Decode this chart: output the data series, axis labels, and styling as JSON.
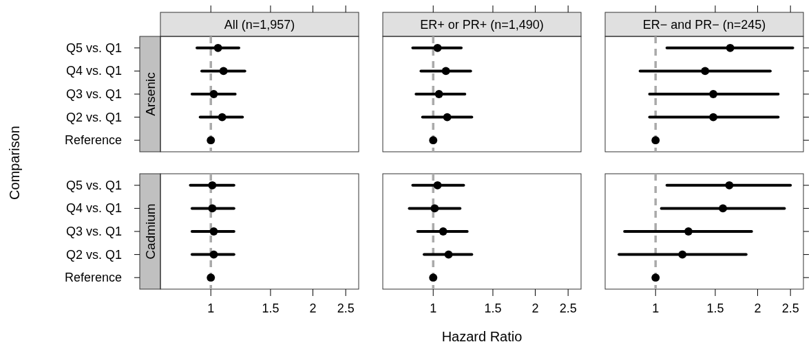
{
  "chart_data": [
    {
      "type": "scatter",
      "orientation": "horizontal",
      "title": "All (n=1,957)",
      "subtitle": "Arsenic",
      "ylabel": "Comparison",
      "categories": [
        "Q5 vs. Q1",
        "Q4 vs. Q1",
        "Q3 vs. Q1",
        "Q2 vs. Q1",
        "Reference"
      ],
      "values": [
        1.05,
        1.09,
        1.02,
        1.08,
        1
      ],
      "errors": [
        [
          0.91,
          1.21
        ],
        [
          0.94,
          1.26
        ],
        [
          0.88,
          1.18
        ],
        [
          0.93,
          1.24
        ],
        null
      ],
      "color": "#000000",
      "marker": "circle",
      "log": "x",
      "xlim": [
        0.71,
        2.73
      ],
      "xticks": [
        1,
        1.5,
        2,
        2.5
      ],
      "ref_lines": [
        {
          "axis": "x",
          "value": 1,
          "color": "#aaaaaa",
          "line_style": "dashed"
        }
      ],
      "tick_labels": "y"
    },
    {
      "type": "scatter",
      "orientation": "horizontal",
      "title": "ER+ or PR+ (n=1,490)",
      "categories": [
        null,
        null,
        null,
        null,
        null
      ],
      "values": [
        1.03,
        1.09,
        1.04,
        1.1,
        1
      ],
      "errors": [
        [
          0.87,
          1.21
        ],
        [
          0.92,
          1.29
        ],
        [
          0.89,
          1.24
        ],
        [
          0.93,
          1.3
        ],
        null
      ],
      "color": "#000000",
      "marker": "circle",
      "log": "x",
      "xlim": [
        0.71,
        2.73
      ],
      "xticks": [
        1,
        1.5,
        2,
        2.5
      ],
      "ref_lines": [
        {
          "axis": "x",
          "value": 1,
          "color": "#aaaaaa",
          "line_style": "dashed"
        }
      ],
      "tick_labels": false
    },
    {
      "type": "scatter",
      "orientation": "horizontal",
      "title": "ER− and PR− (n=245)",
      "categories": [
        null,
        null,
        null,
        null,
        null
      ],
      "values": [
        1.66,
        1.4,
        1.48,
        1.48,
        1
      ],
      "errors": [
        [
          1.08,
          2.54
        ],
        [
          0.9,
          2.18
        ],
        [
          0.96,
          2.3
        ],
        [
          0.96,
          2.3
        ],
        null
      ],
      "color": "#000000",
      "marker": "circle",
      "log": "x",
      "xlim": [
        0.71,
        2.73
      ],
      "xticks": [
        1,
        1.5,
        2,
        2.5
      ],
      "ref_lines": [
        {
          "axis": "x",
          "value": 1,
          "color": "#aaaaaa",
          "line_style": "dashed"
        }
      ],
      "tick_labels": false
    },
    {
      "type": "scatter",
      "orientation": "horizontal",
      "subtitle": "Cadmium",
      "categories": [
        "Q5 vs. Q1",
        "Q4 vs. Q1",
        "Q3 vs. Q1",
        "Q2 vs. Q1",
        "Reference"
      ],
      "values": [
        1.01,
        1.01,
        1.02,
        1.02,
        1
      ],
      "errors": [
        [
          0.87,
          1.17
        ],
        [
          0.88,
          1.17
        ],
        [
          0.88,
          1.17
        ],
        [
          0.88,
          1.17
        ],
        null
      ],
      "color": "#000000",
      "marker": "circle",
      "log": "x",
      "xlim": [
        0.71,
        2.73
      ],
      "xticks": [
        1,
        1.5,
        2,
        2.5
      ],
      "ref_lines": [
        {
          "axis": "x",
          "value": 1,
          "color": "#aaaaaa",
          "line_style": "dashed"
        }
      ]
    },
    {
      "type": "scatter",
      "orientation": "horizontal",
      "xlabel": "Hazard Ratio",
      "categories": [
        null,
        null,
        null,
        null,
        null
      ],
      "values": [
        1.03,
        1.01,
        1.07,
        1.11,
        1
      ],
      "errors": [
        [
          0.87,
          1.23
        ],
        [
          0.85,
          1.2
        ],
        [
          0.9,
          1.26
        ],
        [
          0.94,
          1.3
        ],
        null
      ],
      "color": "#000000",
      "marker": "circle",
      "log": "x",
      "xlim": [
        0.71,
        2.73
      ],
      "xticks": [
        1,
        1.5,
        2,
        2.5
      ],
      "ref_lines": [
        {
          "axis": "x",
          "value": 1,
          "color": "#aaaaaa",
          "line_style": "dashed"
        }
      ],
      "tick_labels": "x"
    },
    {
      "type": "scatter",
      "orientation": "horizontal",
      "categories": [
        null,
        null,
        null,
        null,
        null
      ],
      "values": [
        1.65,
        1.58,
        1.25,
        1.2,
        1
      ],
      "errors": [
        [
          1.08,
          2.5
        ],
        [
          1.04,
          2.4
        ],
        [
          0.81,
          1.92
        ],
        [
          0.78,
          1.85
        ],
        null
      ],
      "color": "#000000",
      "marker": "circle",
      "log": "x",
      "xlim": [
        0.71,
        2.73
      ],
      "xticks": [
        1,
        1.5,
        2,
        2.5
      ],
      "ref_lines": [
        {
          "axis": "x",
          "value": 1,
          "color": "#aaaaaa",
          "line_style": "dashed"
        }
      ],
      "tick_labels": "x"
    }
  ]
}
